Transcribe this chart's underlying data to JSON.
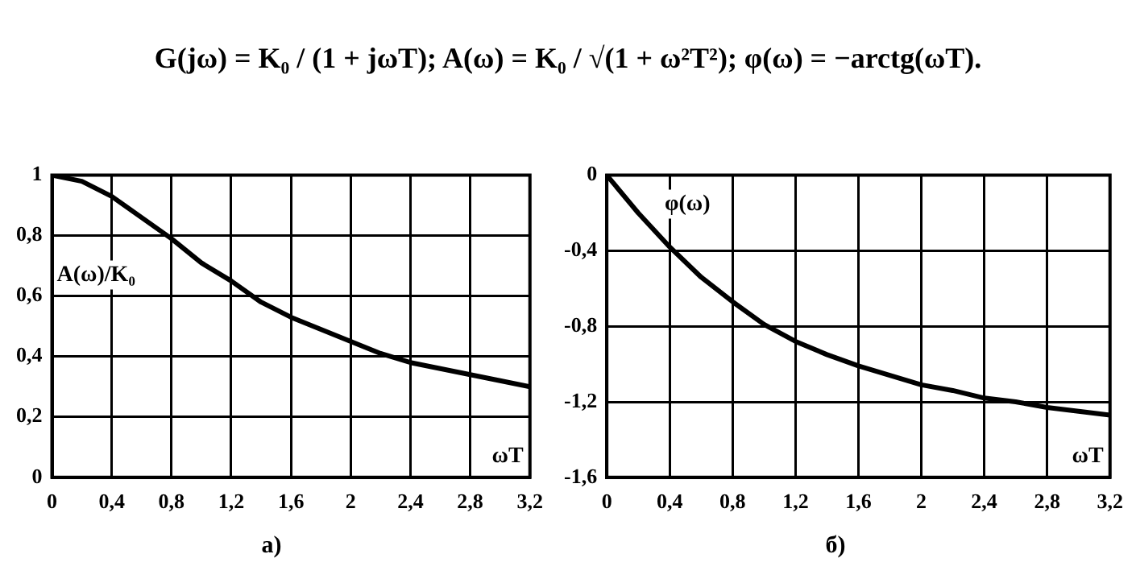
{
  "chart_data": [
    {
      "type": "line",
      "title": "а)",
      "ylabel": "A(ω)/K₀",
      "xlabel": "ωT",
      "annotations": [
        "G(jω) = K₀ / (1 + jωT);     A(ω) = K₀ / √(1 + ω²T²);     φ(ω) = −arctg(ωT)."
      ],
      "x": [
        0,
        0.2,
        0.4,
        0.6,
        0.8,
        1.0,
        1.2,
        1.4,
        1.6,
        1.8,
        2.0,
        2.2,
        2.4,
        2.6,
        2.8,
        3.0,
        3.2
      ],
      "series": [
        {
          "color": "#000000",
          "values": [
            1,
            0.98,
            0.93,
            0.86,
            0.79,
            0.71,
            0.65,
            0.58,
            0.53,
            0.49,
            0.45,
            0.41,
            0.38,
            0.36,
            0.34,
            0.32,
            0.3
          ]
        }
      ],
      "xlim": [
        0,
        3.2
      ],
      "ylim": [
        0,
        1
      ],
      "xticks": [
        {
          "value": 0,
          "label": "0"
        },
        {
          "value": 0.4,
          "label": "0,4"
        },
        {
          "value": 0.8,
          "label": "0,8"
        },
        {
          "value": 1.2,
          "label": "1,2"
        },
        {
          "value": 1.6,
          "label": "1,6"
        },
        {
          "value": 2,
          "label": "2"
        },
        {
          "value": 2.4,
          "label": "2,4"
        },
        {
          "value": 2.8,
          "label": "2,8"
        },
        {
          "value": 3.2,
          "label": "3,2"
        }
      ],
      "yticks": [
        {
          "value": 0,
          "label": "0"
        },
        {
          "value": 0.2,
          "label": "0,2"
        },
        {
          "value": 0.4,
          "label": "0,4"
        },
        {
          "value": 0.6,
          "label": "0,6"
        },
        {
          "value": 0.8,
          "label": "0,8"
        },
        {
          "value": 1,
          "label": "1"
        }
      ],
      "grid": true,
      "legend": false,
      "marker": "none",
      "line_style": "solid"
    },
    {
      "type": "line",
      "title": "б)",
      "ylabel": "φ(ω)",
      "xlabel": "ωT",
      "x": [
        0,
        0.2,
        0.4,
        0.6,
        0.8,
        1.0,
        1.2,
        1.4,
        1.6,
        1.8,
        2.0,
        2.2,
        2.4,
        2.6,
        2.8,
        3.0,
        3.2
      ],
      "series": [
        {
          "color": "#000000",
          "values": [
            0,
            -0.2,
            -0.38,
            -0.54,
            -0.67,
            -0.79,
            -0.88,
            -0.95,
            -1.01,
            -1.06,
            -1.11,
            -1.14,
            -1.18,
            -1.2,
            -1.23,
            -1.25,
            -1.27
          ]
        }
      ],
      "xlim": [
        0,
        3.2
      ],
      "ylim": [
        -1.6,
        0
      ],
      "xticks": [
        {
          "value": 0,
          "label": "0"
        },
        {
          "value": 0.4,
          "label": "0,4"
        },
        {
          "value": 0.8,
          "label": "0,8"
        },
        {
          "value": 1.2,
          "label": "1,2"
        },
        {
          "value": 1.6,
          "label": "1,6"
        },
        {
          "value": 2,
          "label": "2"
        },
        {
          "value": 2.4,
          "label": "2,4"
        },
        {
          "value": 2.8,
          "label": "2,8"
        },
        {
          "value": 3.2,
          "label": "3,2"
        }
      ],
      "yticks": [
        {
          "value": -1.6,
          "label": "-1,6"
        },
        {
          "value": -1.2,
          "label": "-1,2"
        },
        {
          "value": -0.8,
          "label": "-0,8"
        },
        {
          "value": -0.4,
          "label": "-0,4"
        },
        {
          "value": 0,
          "label": "0"
        }
      ],
      "grid": true,
      "legend": false,
      "marker": "none",
      "line_style": "solid"
    }
  ]
}
